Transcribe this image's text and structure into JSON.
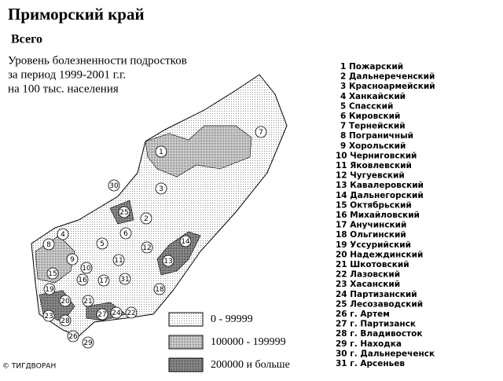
{
  "header": {
    "title": "Приморский край",
    "subtitle": "Всего",
    "description": [
      "Уровень болезненности подростков",
      "за период 1999-2001 г.г.",
      "на 100 тыс. населения"
    ]
  },
  "legend": [
    "0 - 99999",
    "100000 - 199999",
    "200000 и больше"
  ],
  "districts": [
    "1 Пожарский",
    "2 Дальнереченский",
    "3 Красноармейский",
    "4 Ханкайский",
    "5 Спасский",
    "6 Кировский",
    "7 Тернейский",
    "8 Пограничный",
    "9 Хорольский",
    "10 Черниговский",
    "11 Яковлевский",
    "12 Чугуевский",
    "13 Кавалеровский",
    "14 Дальнегорский",
    "15 Октябрьский",
    "16 Михайловский",
    "17 Анучинский",
    "18 Ольгинский",
    "19 Уссурийский",
    "20 Надеждинский",
    "21 Шкотовский",
    "22 Лазовский",
    "23 Хасанский",
    "24 Партизанский",
    "25 Лесозаводский",
    "26 г. Артем",
    "27 г. Партизанск",
    "28 г. Владивосток",
    "29 г. Находка",
    "30 г. Дальнереченск",
    "31 г. Арсеньев"
  ],
  "map_labels": [
    "1",
    "2",
    "3",
    "4",
    "5",
    "6",
    "7",
    "8",
    "9",
    "10",
    "11",
    "12",
    "13",
    "14",
    "15",
    "16",
    "17",
    "18",
    "19",
    "20",
    "21",
    "22",
    "23",
    "24",
    "25",
    "26",
    "27",
    "28",
    "29",
    "30",
    "31"
  ],
  "copyright": "© ТИГДВОРАН"
}
